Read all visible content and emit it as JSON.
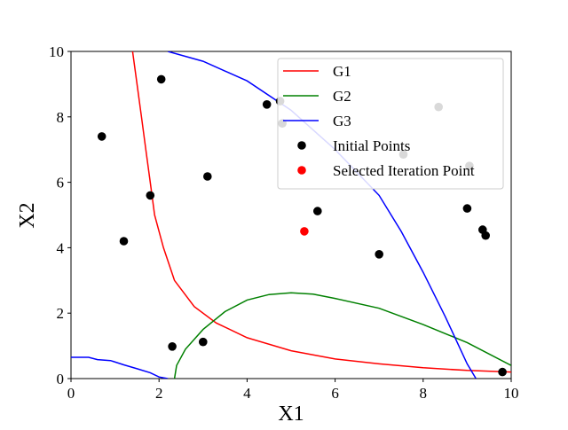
{
  "chart_data": {
    "type": "scatter",
    "xlabel": "X1",
    "ylabel": "X2",
    "xlim": [
      0,
      10
    ],
    "ylim": [
      0,
      10
    ],
    "xticks": [
      "0",
      "2",
      "4",
      "6",
      "8",
      "10"
    ],
    "yticks": [
      "0",
      "2",
      "4",
      "6",
      "8",
      "10"
    ],
    "grid": false,
    "legend_position": "top-right",
    "series": [
      {
        "name": "G1",
        "kind": "line",
        "color": "#ff0000",
        "points": [
          [
            1.4,
            10.0
          ],
          [
            1.5,
            9.0
          ],
          [
            1.6,
            8.0
          ],
          [
            1.7,
            7.0
          ],
          [
            1.8,
            6.0
          ],
          [
            1.9,
            5.0
          ],
          [
            2.1,
            4.0
          ],
          [
            2.35,
            3.0
          ],
          [
            2.8,
            2.2
          ],
          [
            3.3,
            1.7
          ],
          [
            4.0,
            1.25
          ],
          [
            5.0,
            0.85
          ],
          [
            6.0,
            0.6
          ],
          [
            7.0,
            0.45
          ],
          [
            8.0,
            0.33
          ],
          [
            9.0,
            0.25
          ],
          [
            10.0,
            0.2
          ]
        ]
      },
      {
        "name": "G2",
        "kind": "line",
        "color": "#008000",
        "points": [
          [
            2.35,
            0.0
          ],
          [
            2.4,
            0.4
          ],
          [
            2.6,
            0.9
          ],
          [
            3.0,
            1.5
          ],
          [
            3.5,
            2.05
          ],
          [
            4.0,
            2.4
          ],
          [
            4.5,
            2.57
          ],
          [
            5.0,
            2.62
          ],
          [
            5.5,
            2.58
          ],
          [
            6.0,
            2.45
          ],
          [
            7.0,
            2.15
          ],
          [
            8.0,
            1.65
          ],
          [
            9.0,
            1.1
          ],
          [
            10.0,
            0.4
          ]
        ]
      },
      {
        "name": "G3",
        "kind": "line",
        "color": "#0000ff",
        "points": [
          [
            2.2,
            10.0
          ],
          [
            3.0,
            9.7
          ],
          [
            4.0,
            9.1
          ],
          [
            5.0,
            8.2
          ],
          [
            6.0,
            7.0
          ],
          [
            7.0,
            5.6
          ],
          [
            7.5,
            4.5
          ],
          [
            8.0,
            3.25
          ],
          [
            8.5,
            1.9
          ],
          [
            9.0,
            0.45
          ],
          [
            9.2,
            0.0
          ]
        ]
      },
      {
        "name": "G3",
        "kind": "line",
        "color": "#0000ff",
        "points": [
          [
            0.0,
            0.65
          ],
          [
            0.4,
            0.65
          ],
          [
            0.6,
            0.58
          ],
          [
            0.9,
            0.55
          ],
          [
            1.2,
            0.42
          ],
          [
            1.5,
            0.3
          ],
          [
            1.8,
            0.18
          ],
          [
            2.0,
            0.05
          ],
          [
            2.2,
            0.0
          ]
        ]
      },
      {
        "name": "Initial Points",
        "kind": "scatter",
        "color": "#000000",
        "points": [
          [
            0.7,
            7.4
          ],
          [
            1.2,
            4.2
          ],
          [
            1.8,
            5.6
          ],
          [
            2.05,
            9.15
          ],
          [
            2.3,
            0.98
          ],
          [
            3.0,
            1.12
          ],
          [
            3.1,
            6.18
          ],
          [
            4.45,
            8.38
          ],
          [
            4.75,
            8.48
          ],
          [
            4.8,
            7.8
          ],
          [
            5.6,
            5.12
          ],
          [
            7.0,
            3.8
          ],
          [
            7.55,
            6.85
          ],
          [
            8.35,
            8.3
          ],
          [
            9.0,
            5.2
          ],
          [
            9.05,
            6.5
          ],
          [
            9.35,
            4.55
          ],
          [
            9.42,
            4.37
          ],
          [
            9.8,
            0.2
          ]
        ]
      },
      {
        "name": "Selected Iteration Point",
        "kind": "scatter",
        "color": "#ff0000",
        "points": [
          [
            5.3,
            4.5
          ]
        ]
      }
    ]
  }
}
